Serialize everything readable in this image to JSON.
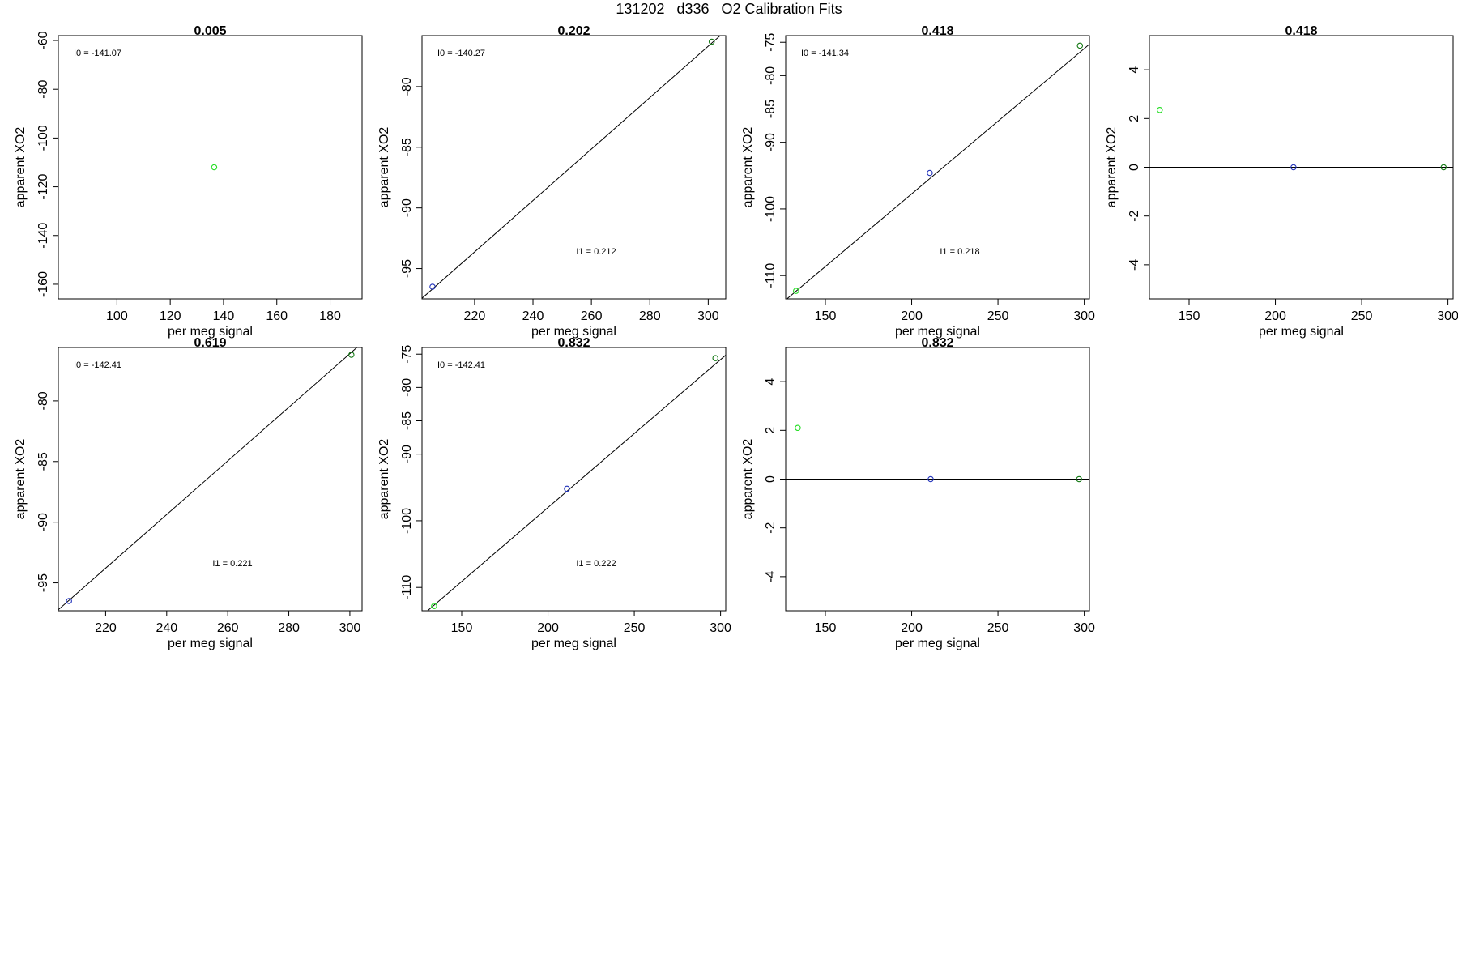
{
  "page_title": "131202   d336   O2 Calibration Fits",
  "colors": {
    "green_point": "#22dd22",
    "dark_green_point": "#117711",
    "blue_point": "#2233bb",
    "axis": "#000000"
  },
  "chart_data": [
    {
      "type": "scatter",
      "title": "0.005",
      "xlabel": "per meg signal",
      "ylabel": "apparent XO2",
      "xlim": [
        78,
        192
      ],
      "ylim": [
        -166,
        -58
      ],
      "xticks": [
        100,
        120,
        140,
        160,
        180
      ],
      "yticks": [
        -160,
        -140,
        -120,
        -100,
        -80,
        -60
      ],
      "points": [
        {
          "x": 136.5,
          "y": -112,
          "color": "green"
        }
      ],
      "fit_line": null,
      "annotations": {
        "I0": "I0 =  -141.07",
        "I1": ""
      }
    },
    {
      "type": "scatter",
      "title": "0.202",
      "xlabel": "per meg signal",
      "ylabel": "apparent XO2",
      "xlim": [
        202,
        306
      ],
      "ylim": [
        -97.5,
        -75.8
      ],
      "xticks": [
        220,
        240,
        260,
        280,
        300
      ],
      "yticks": [
        -95,
        -90,
        -85,
        -80
      ],
      "points": [
        {
          "x": 205.6,
          "y": -96.5,
          "color": "blue"
        },
        {
          "x": 301.2,
          "y": -76.3,
          "color": "dark_green"
        }
      ],
      "fit_line": {
        "intercept": -140.27,
        "slope": 0.212
      },
      "annotations": {
        "I0": "I0 =  -140.27",
        "I1": "I1 =  0.212"
      }
    },
    {
      "type": "scatter",
      "title": "0.418",
      "xlabel": "per meg signal",
      "ylabel": "apparent XO2",
      "xlim": [
        127,
        303
      ],
      "ylim": [
        -113.5,
        -74
      ],
      "xticks": [
        150,
        200,
        250,
        300
      ],
      "yticks": [
        -110,
        -100,
        -90,
        -85,
        -80,
        -75
      ],
      "points": [
        {
          "x": 133,
          "y": -112.3,
          "color": "green"
        },
        {
          "x": 210.5,
          "y": -94.6,
          "color": "blue"
        },
        {
          "x": 297.5,
          "y": -75.5,
          "color": "dark_green"
        }
      ],
      "fit_line": {
        "intercept": -141.34,
        "slope": 0.218
      },
      "annotations": {
        "I0": "I0 =  -141.34",
        "I1": "I1 =  0.218"
      }
    },
    {
      "type": "scatter",
      "title": "0.418",
      "xlabel": "per meg signal",
      "ylabel": "apparent XO2",
      "xlim": [
        127,
        303
      ],
      "ylim": [
        -5.4,
        5.4
      ],
      "xticks": [
        150,
        200,
        250,
        300
      ],
      "yticks": [
        -4,
        -2,
        0,
        2,
        4
      ],
      "points": [
        {
          "x": 133,
          "y": 2.35,
          "color": "green"
        },
        {
          "x": 210.5,
          "y": 0,
          "color": "blue"
        },
        {
          "x": 297.5,
          "y": 0,
          "color": "dark_green"
        }
      ],
      "fit_line": {
        "intercept": 0,
        "slope": 0
      },
      "annotations": {
        "I0": "",
        "I1": ""
      }
    },
    {
      "type": "scatter",
      "title": "0.619",
      "xlabel": "per meg signal",
      "ylabel": "apparent XO2",
      "xlim": [
        204.5,
        304
      ],
      "ylim": [
        -97.3,
        -75.6
      ],
      "xticks": [
        220,
        240,
        260,
        280,
        300
      ],
      "yticks": [
        -95,
        -90,
        -85,
        -80
      ],
      "points": [
        {
          "x": 208,
          "y": -96.5,
          "color": "blue"
        },
        {
          "x": 300.5,
          "y": -76.2,
          "color": "dark_green"
        }
      ],
      "fit_line": {
        "intercept": -142.41,
        "slope": 0.221
      },
      "annotations": {
        "I0": "I0 =  -142.41",
        "I1": "I1 =  0.221"
      }
    },
    {
      "type": "scatter",
      "title": "0.832",
      "xlabel": "per meg signal",
      "ylabel": "apparent XO2",
      "xlim": [
        127,
        303
      ],
      "ylim": [
        -113.5,
        -74
      ],
      "xticks": [
        150,
        200,
        250,
        300
      ],
      "yticks": [
        -110,
        -100,
        -90,
        -85,
        -80,
        -75
      ],
      "points": [
        {
          "x": 134,
          "y": -112.8,
          "color": "green"
        },
        {
          "x": 211,
          "y": -95.2,
          "color": "blue"
        },
        {
          "x": 297,
          "y": -75.6,
          "color": "dark_green"
        }
      ],
      "fit_line": {
        "intercept": -142.41,
        "slope": 0.222
      },
      "annotations": {
        "I0": "I0 =  -142.41",
        "I1": "I1 =  0.222"
      }
    },
    {
      "type": "scatter",
      "title": "0.832",
      "xlabel": "per meg signal",
      "ylabel": "apparent XO2",
      "xlim": [
        127,
        303
      ],
      "ylim": [
        -5.4,
        5.4
      ],
      "xticks": [
        150,
        200,
        250,
        300
      ],
      "yticks": [
        -4,
        -2,
        0,
        2,
        4
      ],
      "points": [
        {
          "x": 134,
          "y": 2.1,
          "color": "green"
        },
        {
          "x": 211,
          "y": 0,
          "color": "blue"
        },
        {
          "x": 297,
          "y": 0,
          "color": "dark_green"
        }
      ],
      "fit_line": {
        "intercept": 0,
        "slope": 0
      },
      "annotations": {
        "I0": "",
        "I1": ""
      }
    }
  ]
}
